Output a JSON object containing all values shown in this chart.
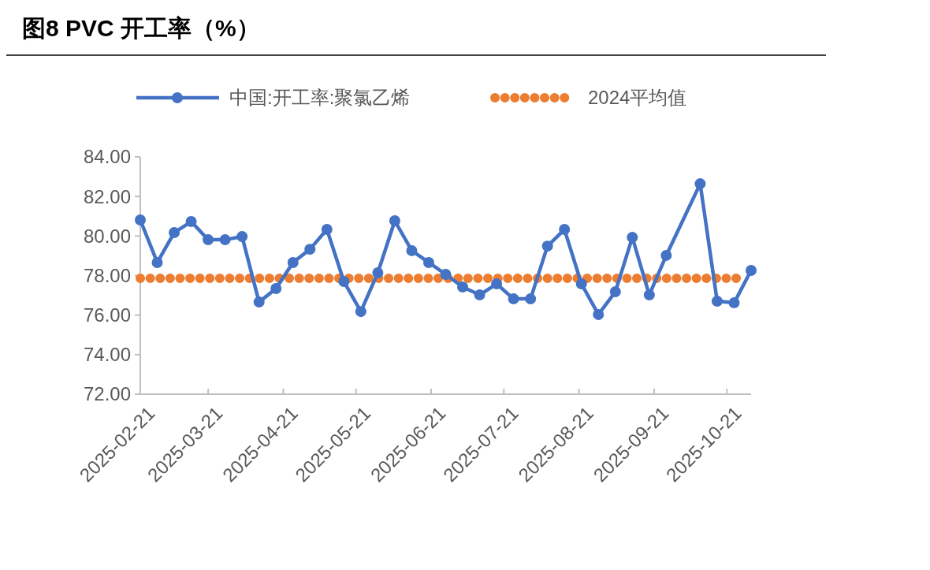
{
  "chart_data": {
    "type": "line",
    "title": "图8  PVC 开工率（%）",
    "x": [
      "2025-02-21",
      "2025-02-28",
      "2025-03-07",
      "2025-03-14",
      "2025-03-21",
      "2025-03-28",
      "2025-04-04",
      "2025-04-11",
      "2025-04-18",
      "2025-04-25",
      "2025-05-02",
      "2025-05-09",
      "2025-05-16",
      "2025-05-23",
      "2025-05-30",
      "2025-06-06",
      "2025-06-13",
      "2025-06-20",
      "2025-06-27",
      "2025-07-04",
      "2025-07-11",
      "2025-07-18",
      "2025-07-25",
      "2025-08-01",
      "2025-08-08",
      "2025-08-15",
      "2025-08-22",
      "2025-08-29",
      "2025-09-05",
      "2025-09-12",
      "2025-09-19",
      "2025-09-26",
      "2025-10-10",
      "2025-10-17",
      "2025-10-24",
      "2025-10-31"
    ],
    "series": [
      {
        "name": "中国:开工率:聚氯乙烯",
        "color": "#4472c4",
        "values": [
          80.81,
          78.66,
          80.17,
          80.73,
          79.81,
          79.81,
          79.97,
          76.66,
          77.34,
          78.66,
          79.33,
          80.33,
          77.7,
          76.18,
          78.14,
          80.77,
          79.26,
          78.66,
          78.06,
          77.42,
          77.02,
          77.58,
          76.82,
          76.82,
          79.49,
          80.33,
          77.58,
          76.03,
          77.18,
          79.93,
          77.02,
          79.02,
          82.64,
          76.7,
          76.62,
          78.26
        ]
      }
    ],
    "ref_lines": [
      {
        "axis": "y",
        "value": 77.86,
        "label": "2024平均值",
        "color": "#ed7d31",
        "line_style": "dotted"
      }
    ],
    "xlim": [
      "2025-02-21",
      "2025-10-31"
    ],
    "xticks": [
      "2025-02-21",
      "2025-03-21",
      "2025-04-21",
      "2025-05-21",
      "2025-06-21",
      "2025-07-21",
      "2025-08-21",
      "2025-09-21",
      "2025-10-21"
    ],
    "ylim": [
      72,
      84
    ],
    "yticks": [
      {
        "value": 72,
        "label": "72.00"
      },
      {
        "value": 74,
        "label": "74.00"
      },
      {
        "value": 76,
        "label": "76.00"
      },
      {
        "value": 78,
        "label": "78.00"
      },
      {
        "value": 80,
        "label": "80.00"
      },
      {
        "value": 82,
        "label": "82.00"
      },
      {
        "value": 84,
        "label": "84.00"
      }
    ],
    "marker": "circle",
    "line_style": "solid",
    "legend": "top",
    "grid": false
  }
}
